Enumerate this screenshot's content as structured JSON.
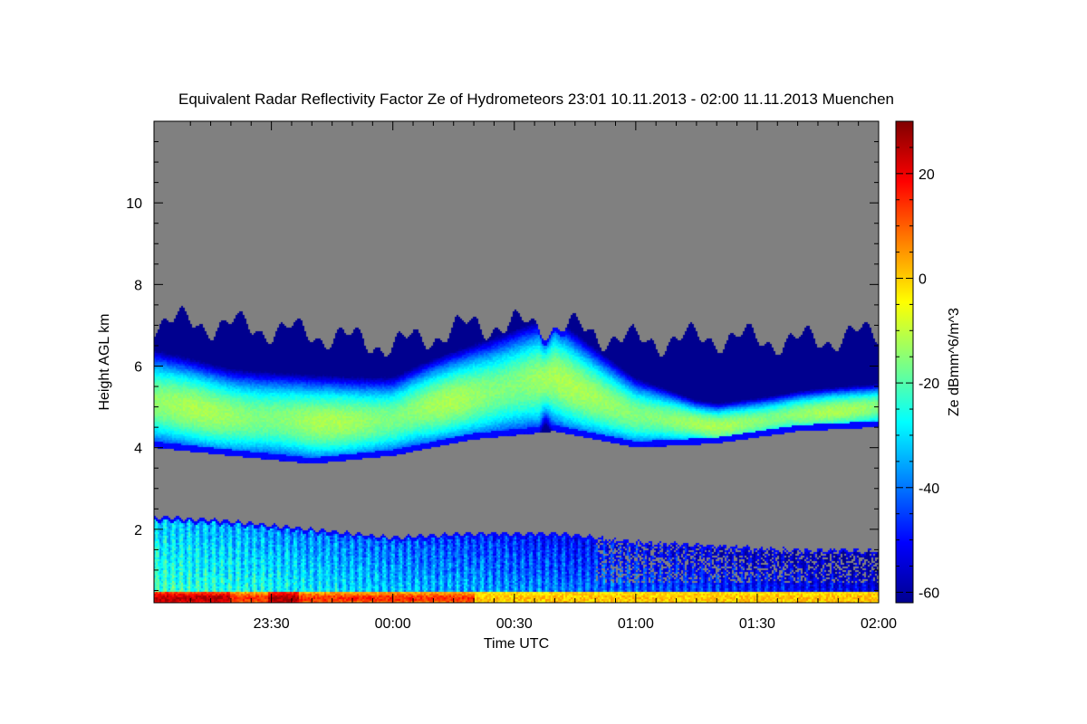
{
  "chart_data": {
    "type": "heatmap",
    "title": "Equivalent Radar Reflectivity Factor Ze of Hydrometeors   23:01 10.11.2013 - 02:00 11.11.2013 Muenchen",
    "xlabel": "Time UTC",
    "ylabel": "Height AGL km",
    "colorbar_label": "Ze dBmm^6/m^3",
    "x_range_minutes": [
      -59,
      120
    ],
    "x_ticks": [
      {
        "label": "23:30",
        "minutes": -30
      },
      {
        "label": "00:00",
        "minutes": 0
      },
      {
        "label": "00:30",
        "minutes": 30
      },
      {
        "label": "01:00",
        "minutes": 60
      },
      {
        "label": "01:30",
        "minutes": 90
      },
      {
        "label": "02:00",
        "minutes": 120
      }
    ],
    "ylim": [
      0.2,
      12
    ],
    "y_ticks": [
      {
        "label": "2",
        "value": 2
      },
      {
        "label": "4",
        "value": 4
      },
      {
        "label": "6",
        "value": 6
      },
      {
        "label": "8",
        "value": 8
      },
      {
        "label": "10",
        "value": 10
      }
    ],
    "colorbar_range": [
      -62,
      30
    ],
    "colorbar_ticks": [
      {
        "label": "20",
        "value": 20
      },
      {
        "label": "0",
        "value": 0
      },
      {
        "label": "-20",
        "value": -20
      },
      {
        "label": "-40",
        "value": -40
      },
      {
        "label": "-60",
        "value": -60
      }
    ],
    "colors": {
      "no_signal": "#808080",
      "colormap": [
        "#00008f",
        "#0000ff",
        "#0080ff",
        "#00ffff",
        "#80ff80",
        "#ffff00",
        "#ff8000",
        "#ff0000",
        "#800000"
      ]
    },
    "upper_layer": {
      "time_minutes": [
        -59,
        -40,
        -20,
        0,
        20,
        40,
        60,
        80,
        100,
        120
      ],
      "top_km": [
        7.1,
        7.0,
        6.8,
        6.5,
        7.0,
        7.0,
        6.6,
        6.7,
        6.6,
        6.8
      ],
      "base_km": [
        4.0,
        3.8,
        3.6,
        3.8,
        4.2,
        4.4,
        4.0,
        4.1,
        4.4,
        4.5
      ],
      "core_km": [
        5.1,
        4.8,
        4.6,
        4.7,
        5.3,
        5.7,
        4.8,
        4.5,
        4.8,
        5.0
      ],
      "max_ze_dbz": -12
    },
    "lower_layer": {
      "time_minutes": [
        -59,
        -40,
        -20,
        0,
        20,
        40,
        60,
        80,
        100,
        120
      ],
      "top_km": [
        2.3,
        2.2,
        2.0,
        1.8,
        1.9,
        1.9,
        1.7,
        1.6,
        1.5,
        1.5
      ],
      "max_ze_dbz": 28
    }
  }
}
